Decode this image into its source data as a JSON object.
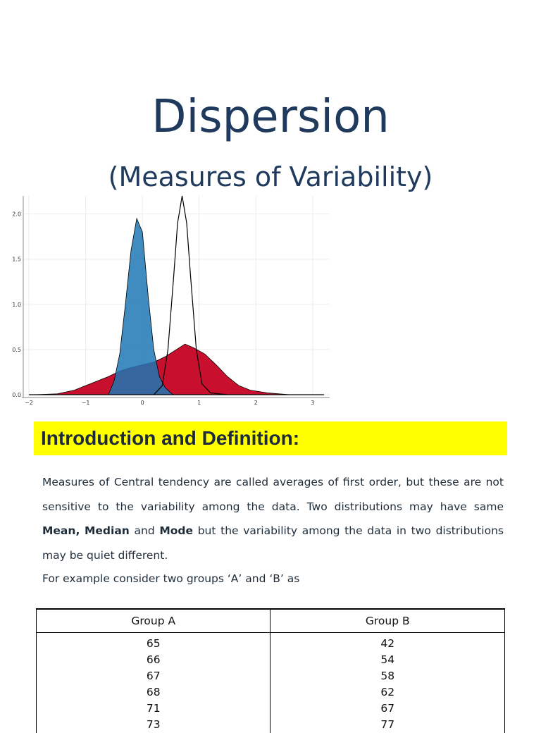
{
  "title": "Dispersion",
  "subtitle": "(Measures of Variability)",
  "chart_data": {
    "type": "area",
    "title": "",
    "xlabel": "",
    "ylabel": "",
    "xlim": [
      -2.1,
      3.3
    ],
    "ylim": [
      0,
      2.2
    ],
    "x_ticks": [
      -2,
      -1,
      0,
      1,
      2,
      3
    ],
    "y_ticks": [
      0.0,
      0.5,
      1.0,
      1.5,
      2.0
    ],
    "x_tick_labels": [
      "−2",
      "−1",
      "0",
      "1",
      "2",
      "3"
    ],
    "y_tick_labels": [
      "0.0",
      "0.5",
      "1.0",
      "1.5",
      "2.0"
    ],
    "grid": true,
    "series": [
      {
        "fill": "#c8102e",
        "points": [
          [
            -1.9,
            0
          ],
          [
            -1.5,
            0.01
          ],
          [
            -1.2,
            0.05
          ],
          [
            -1.0,
            0.1
          ],
          [
            -0.8,
            0.15
          ],
          [
            -0.6,
            0.2
          ],
          [
            -0.4,
            0.26
          ],
          [
            -0.2,
            0.3
          ],
          [
            0.0,
            0.33
          ],
          [
            0.2,
            0.36
          ],
          [
            0.4,
            0.42
          ],
          [
            0.6,
            0.5
          ],
          [
            0.75,
            0.56
          ],
          [
            0.9,
            0.52
          ],
          [
            1.1,
            0.45
          ],
          [
            1.3,
            0.33
          ],
          [
            1.5,
            0.2
          ],
          [
            1.7,
            0.1
          ],
          [
            1.9,
            0.05
          ],
          [
            2.2,
            0.02
          ],
          [
            2.6,
            0
          ],
          [
            3.2,
            0
          ]
        ]
      },
      {
        "fill": "#1f77b4",
        "points": [
          [
            -0.6,
            0
          ],
          [
            -0.5,
            0.15
          ],
          [
            -0.4,
            0.45
          ],
          [
            -0.3,
            1.0
          ],
          [
            -0.2,
            1.6
          ],
          [
            -0.1,
            1.95
          ],
          [
            0.0,
            1.8
          ],
          [
            0.1,
            1.1
          ],
          [
            0.2,
            0.5
          ],
          [
            0.3,
            0.2
          ],
          [
            0.4,
            0.08
          ],
          [
            0.5,
            0.02
          ],
          [
            0.55,
            0
          ]
        ]
      },
      {
        "fill": "none",
        "points": [
          [
            -2.0,
            0
          ],
          [
            0.2,
            0
          ],
          [
            0.35,
            0.1
          ],
          [
            0.45,
            0.5
          ],
          [
            0.55,
            1.3
          ],
          [
            0.62,
            1.9
          ],
          [
            0.7,
            2.2
          ],
          [
            0.78,
            1.9
          ],
          [
            0.85,
            1.3
          ],
          [
            0.95,
            0.5
          ],
          [
            1.05,
            0.12
          ],
          [
            1.2,
            0.02
          ],
          [
            1.5,
            0
          ],
          [
            3.2,
            0
          ]
        ]
      }
    ]
  },
  "banner": "Introduction and Definition:",
  "paragraph": {
    "part1": "Measures of Central tendency are called averages of first order, but these are not sensitive to the variability among the data. Two distributions may have same ",
    "mean": "Mean",
    "comma": ",",
    "median": "Median",
    "and": " and ",
    "mode": "Mode",
    "part2": " but the variability among the data in two distributions may be quiet different."
  },
  "example_line": "For example consider two groups ‘A’ and ‘B’ as",
  "table": {
    "headers": [
      "Group A",
      "Group B"
    ],
    "rows": [
      [
        "65",
        "42"
      ],
      [
        "66",
        "54"
      ],
      [
        "67",
        "58"
      ],
      [
        "68",
        "62"
      ],
      [
        "71",
        "67"
      ],
      [
        "73",
        "77"
      ]
    ]
  }
}
